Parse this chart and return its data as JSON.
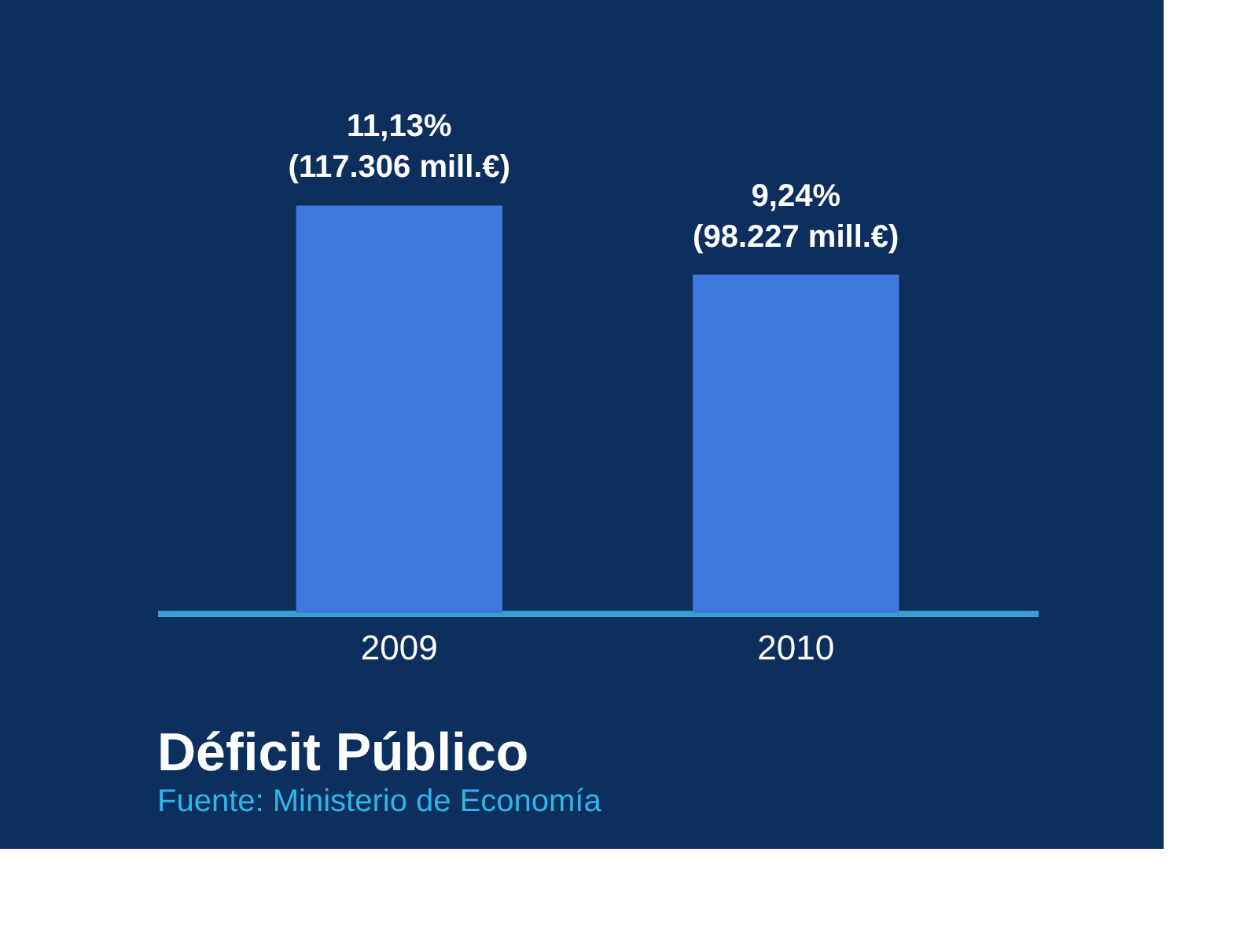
{
  "chart_data": {
    "type": "bar",
    "title": "Déficit Público",
    "annotations": [
      "Fuente:  Ministerio de Economía"
    ],
    "categories": [
      "2009",
      "2010"
    ],
    "values": [
      11.13,
      9.24
    ],
    "color": "#3f78dc",
    "value_labels": [
      "11,13%\n(117.306 mill.€)",
      "9,24%\n(98.227 mill.€)"
    ],
    "grid": false
  }
}
